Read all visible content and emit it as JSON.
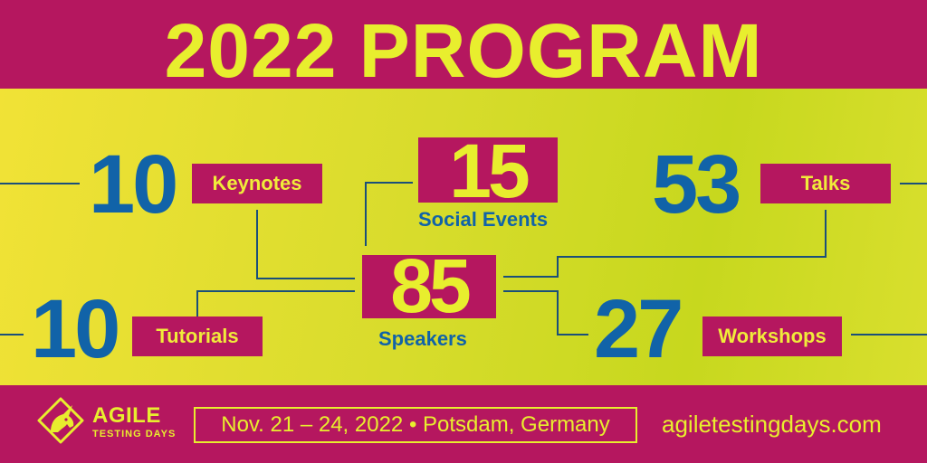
{
  "title": "2022 PROGRAM",
  "stats": {
    "keynotes": {
      "value": "10",
      "label": "Keynotes"
    },
    "social_events": {
      "value": "15",
      "label": "Social Events"
    },
    "talks": {
      "value": "53",
      "label": "Talks"
    },
    "speakers": {
      "value": "85",
      "label": "Speakers"
    },
    "tutorials": {
      "value": "10",
      "label": "Tutorials"
    },
    "workshops": {
      "value": "27",
      "label": "Workshops"
    }
  },
  "footer": {
    "logo_main": "AGILE",
    "logo_sub": "TESTING DAYS",
    "date_location": "Nov. 21 – 24, 2022 • Potsdam, Germany",
    "website": "agiletestingdays.com"
  },
  "colors": {
    "magenta": "#b5175f",
    "yellow": "#e8ee2e",
    "blue": "#1163a8",
    "band": "#d8dc2c"
  },
  "icons": {
    "logo": "unicorn-logo-icon"
  }
}
